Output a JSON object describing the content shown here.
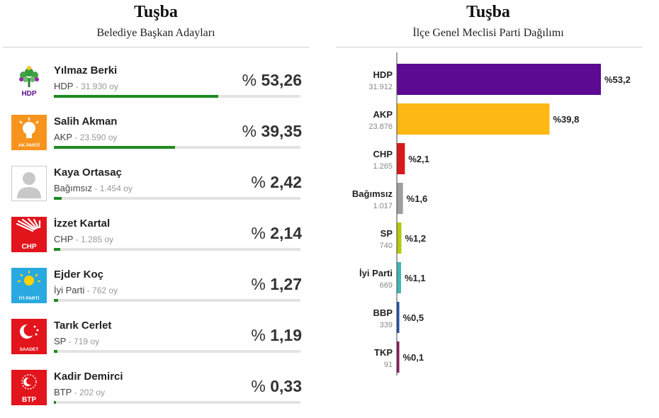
{
  "mayor": {
    "title": "Tuşba",
    "subtitle": "Belediye Başkan Adayları",
    "candidates": [
      {
        "name": "Yılmaz Berki",
        "party": "HDP",
        "votes": "31.930",
        "unit": "oy",
        "percent_sign": "%",
        "percent": "53,26",
        "share": 53.26,
        "logo_icon": "hdp-tree-logo-icon",
        "logo_label": "HDP",
        "color": "#1f8a1f"
      },
      {
        "name": "Salih Akman",
        "party": "AKP",
        "votes": "23.590",
        "unit": "oy",
        "percent_sign": "%",
        "percent": "39,35",
        "share": 39.35,
        "logo_icon": "akp-bulb-logo-icon",
        "logo_label": "AK PARTİ",
        "color": "#f7941d"
      },
      {
        "name": "Kaya Ortasaç",
        "party": "Bağımsız",
        "votes": "1.454",
        "unit": "oy",
        "percent_sign": "%",
        "percent": "2,42",
        "share": 2.42,
        "logo_icon": "person-silhouette-icon",
        "logo_label": "",
        "color": "#c8c8c8"
      },
      {
        "name": "İzzet Kartal",
        "party": "CHP",
        "votes": "1.285",
        "unit": "oy",
        "percent_sign": "%",
        "percent": "2,14",
        "share": 2.14,
        "logo_icon": "chp-arrows-logo-icon",
        "logo_label": "CHP",
        "color": "#e2141c"
      },
      {
        "name": "Ejder Koç",
        "party": "İyi Parti",
        "votes": "762",
        "unit": "oy",
        "percent_sign": "%",
        "percent": "1,27",
        "share": 1.27,
        "logo_icon": "iyi-sun-logo-icon",
        "logo_label": "İYİ PARTİ",
        "color": "#29a9e0"
      },
      {
        "name": "Tarık Cerlet",
        "party": "SP",
        "votes": "719",
        "unit": "oy",
        "percent_sign": "%",
        "percent": "1,19",
        "share": 1.19,
        "logo_icon": "saadet-crescent-logo-icon",
        "logo_label": "SAADET",
        "color": "#e2141c"
      },
      {
        "name": "Kadir Demirci",
        "party": "BTP",
        "votes": "202",
        "unit": "oy",
        "percent_sign": "%",
        "percent": "0,33",
        "share": 0.33,
        "logo_icon": "btp-stars-logo-icon",
        "logo_label": "BTP",
        "color": "#e2141c"
      }
    ]
  },
  "chart_data": {
    "type": "bar",
    "orientation": "horizontal",
    "title": "Tuşba",
    "subtitle": "İlçe Genel Meclisi Parti Dağılımı",
    "categories": [
      "HDP",
      "AKP",
      "CHP",
      "Bağımsız",
      "SP",
      "İyi Parti",
      "BBP",
      "TKP"
    ],
    "votes": [
      "31.912",
      "23.876",
      "1.265",
      "1.017",
      "740",
      "669",
      "339",
      "91"
    ],
    "values": [
      53.2,
      39.8,
      2.1,
      1.6,
      1.2,
      1.1,
      0.5,
      0.1
    ],
    "value_labels": [
      "%53,2",
      "%39,8",
      "%2,1",
      "%1,6",
      "%1,2",
      "%1,1",
      "%0,5",
      "%0,1"
    ],
    "colors": [
      "#5b0a91",
      "#fdb813",
      "#d7191c",
      "#9e9e9e",
      "#b7c90e",
      "#43b6b2",
      "#2451a6",
      "#8a1a5c"
    ],
    "xlim": [
      0,
      53.2
    ],
    "grid": false,
    "legend": "none"
  }
}
